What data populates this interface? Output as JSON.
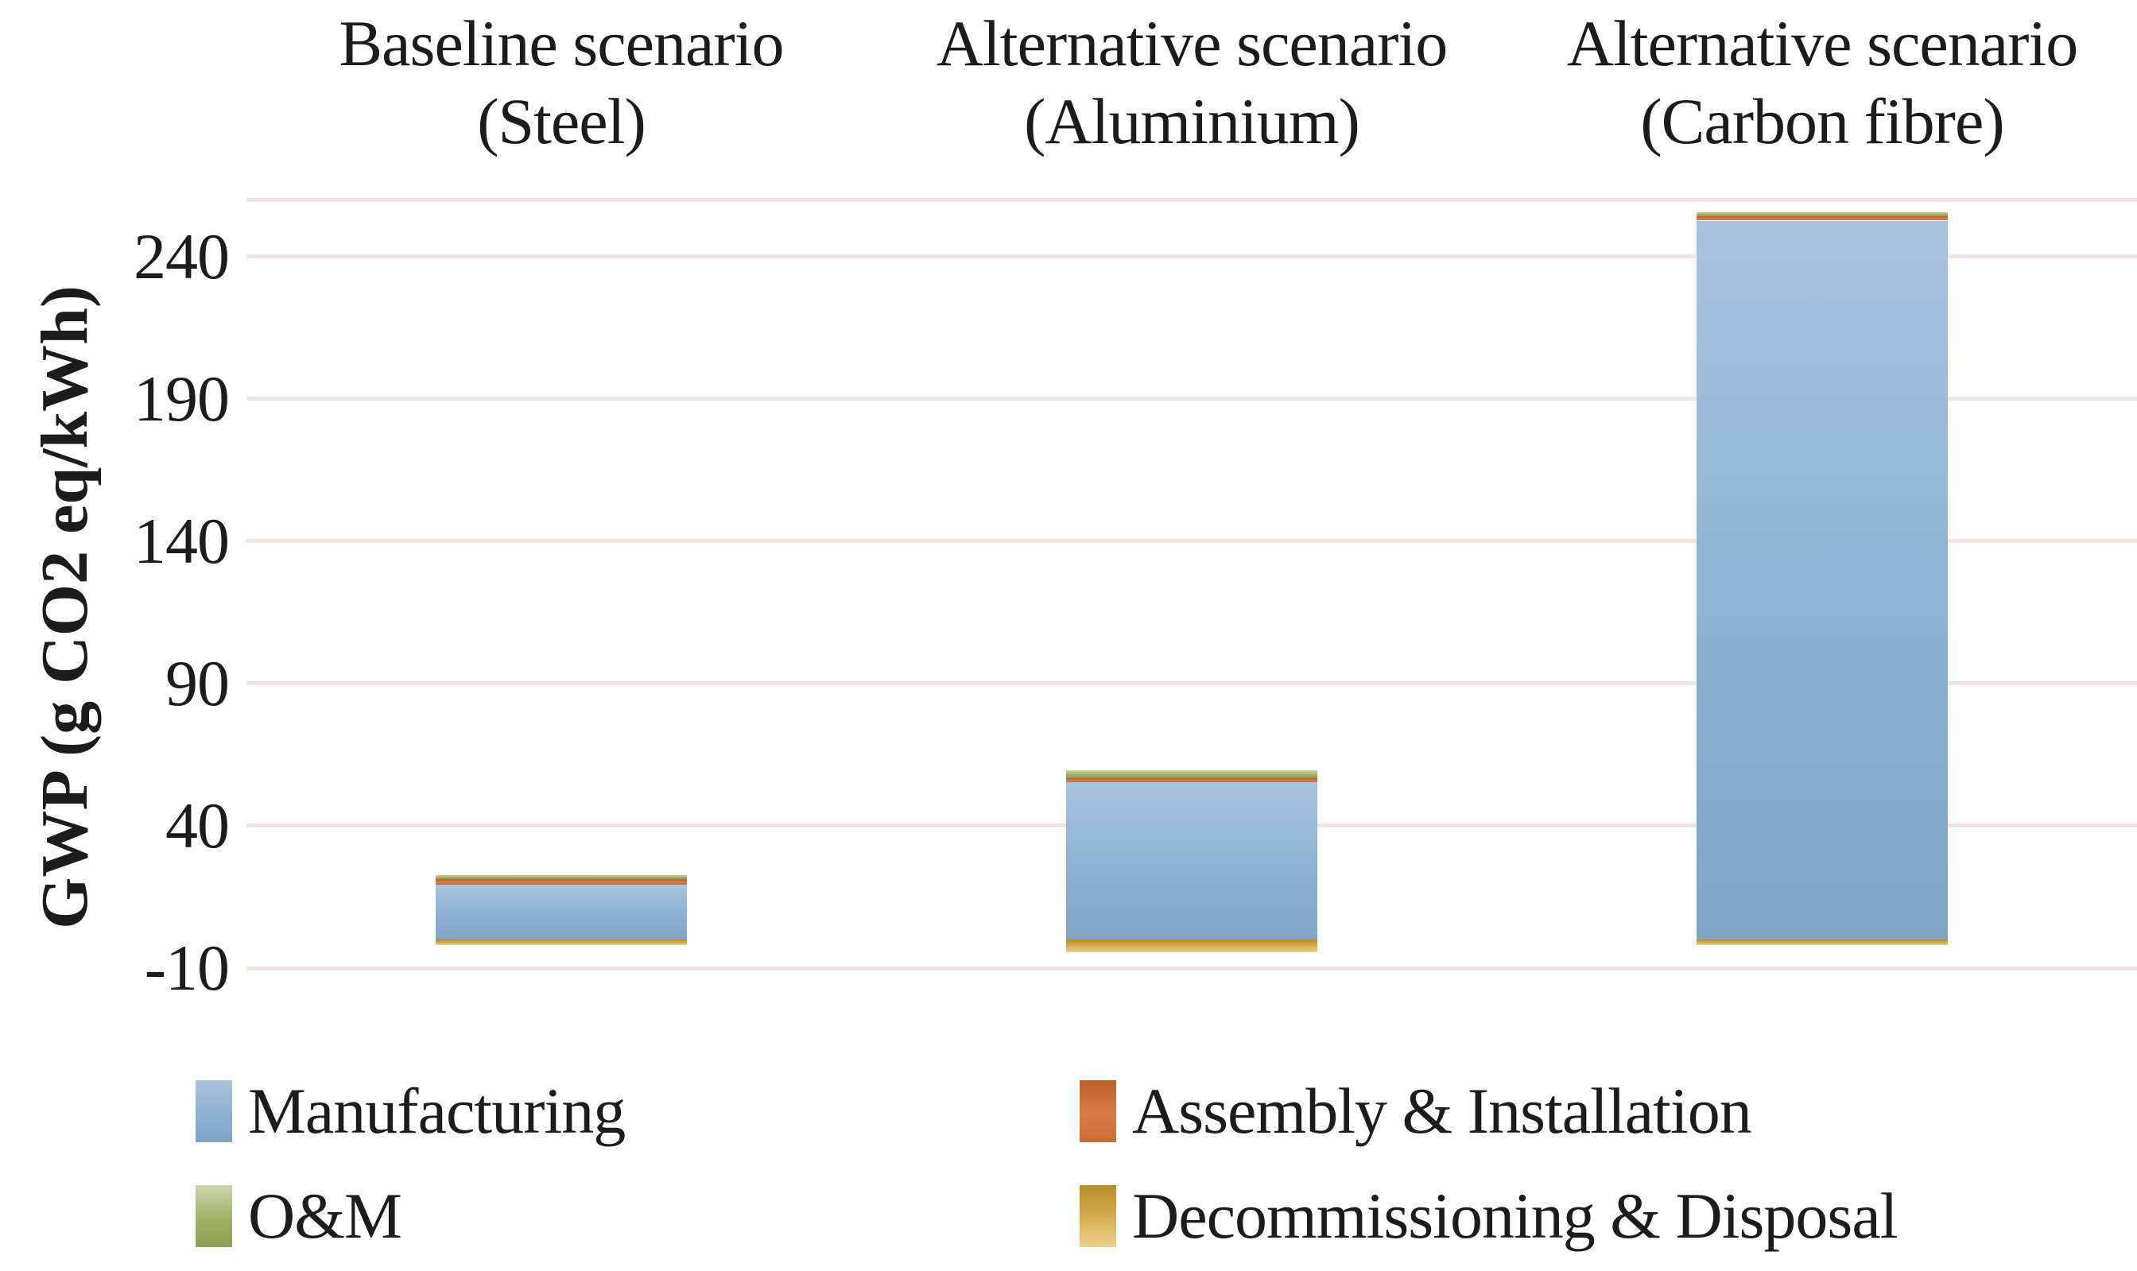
{
  "chart_data": {
    "type": "bar",
    "stacked": true,
    "ylabel": "GWP (g CO2 eq/kWh)",
    "categories": [
      {
        "label": "Baseline scenario",
        "sub": "(Steel)"
      },
      {
        "label": "Alternative scenario",
        "sub": "(Aluminium)"
      },
      {
        "label": "Alternative scenario",
        "sub": "(Carbon fibre)"
      }
    ],
    "series": [
      {
        "name": "Manufacturing",
        "color": "#8fb2d4",
        "values": [
          19.3,
          55.4,
          252.6
        ]
      },
      {
        "name": "Assembly & Installation",
        "color": "#cd7036",
        "values": [
          2.0,
          1.4,
          1.4
        ]
      },
      {
        "name": "O&M",
        "color": "#9aa75f",
        "values": [
          1.4,
          2.8,
          1.4
        ]
      },
      {
        "name": "Decommissioning & Disposal",
        "color": "#d2a342",
        "values": [
          -2.0,
          -4.5,
          -2.0
        ]
      }
    ],
    "y_ticks": [
      240,
      190,
      140,
      90,
      40,
      -10
    ],
    "ylim": [
      -10,
      260
    ],
    "grid": true,
    "legend_position": "bottom"
  }
}
